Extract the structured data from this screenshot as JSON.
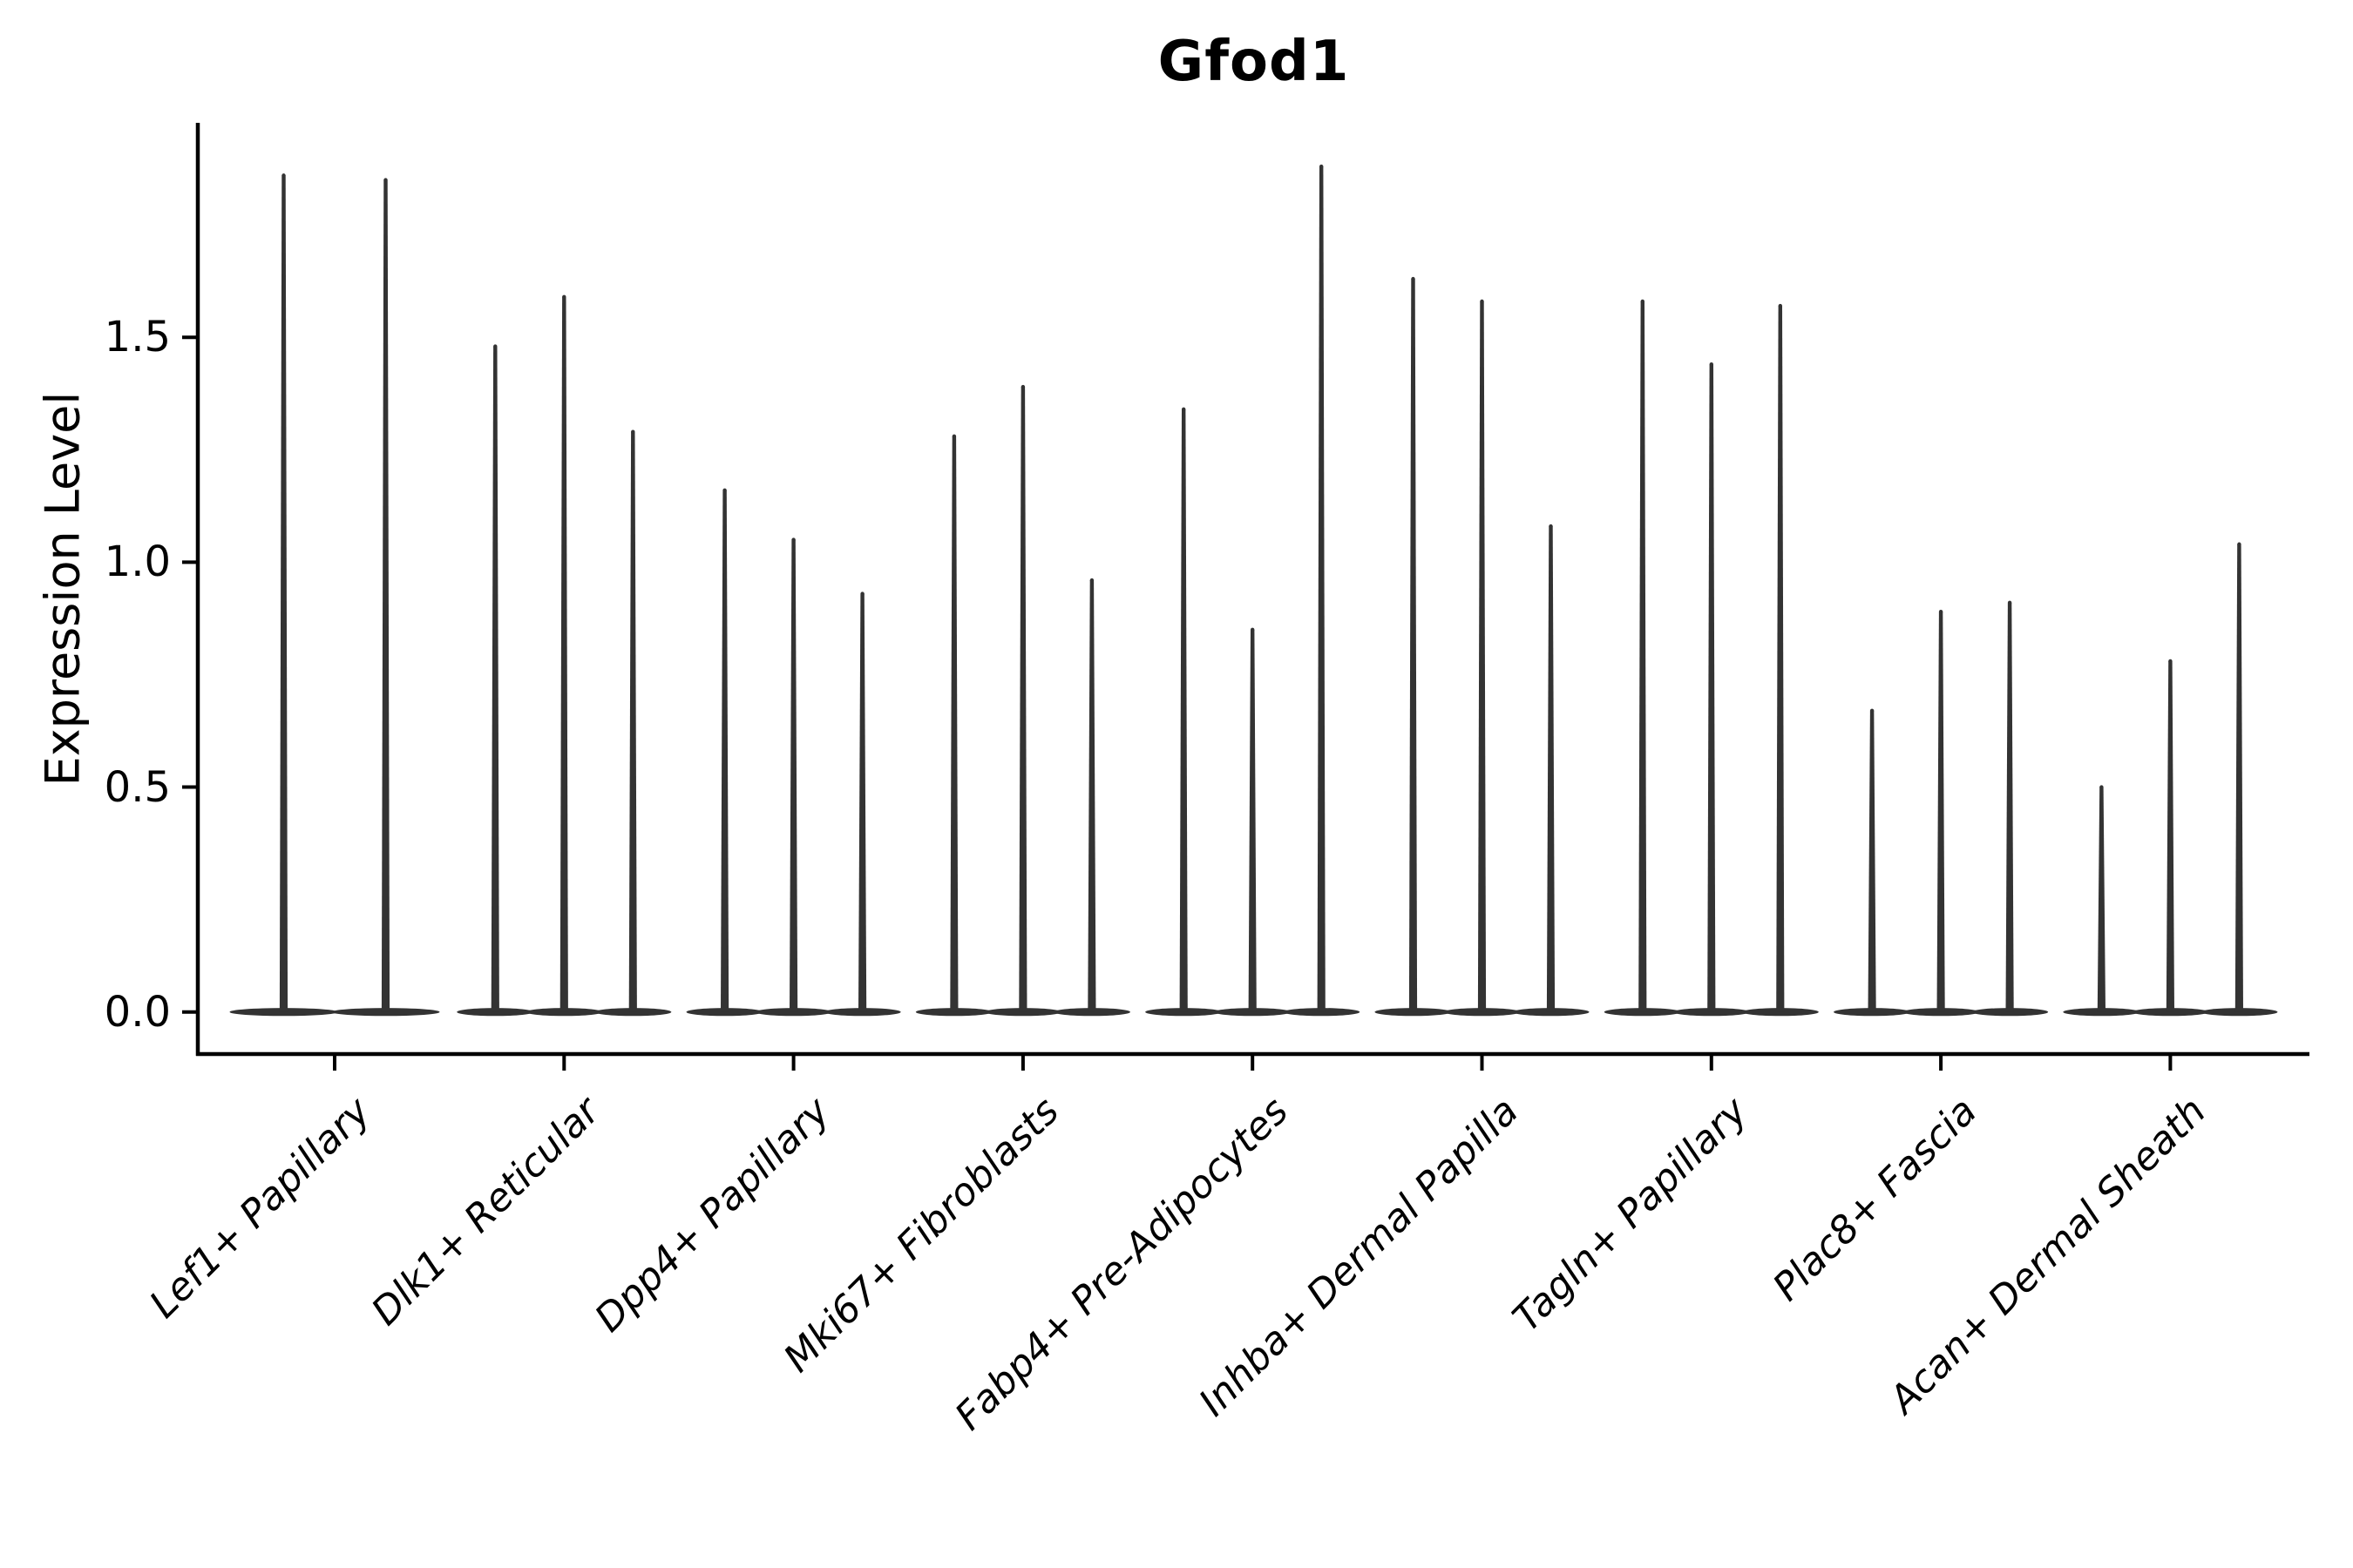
{
  "title": "Gfod1",
  "y_axis": {
    "label": "Expression Level",
    "tick_labels": [
      "0.0",
      "0.5",
      "1.0",
      "1.5"
    ],
    "tick_values": [
      0.0,
      0.5,
      1.0,
      1.5
    ]
  },
  "colors": {
    "violin": "#333333",
    "axis": "#000000",
    "text": "#000000",
    "background": "#ffffff"
  },
  "chart_data": {
    "type": "violin",
    "title": "Gfod1",
    "xlabel": "",
    "ylabel": "Expression Level",
    "ylim": [
      -0.09,
      1.98
    ],
    "grid": false,
    "legend": "none",
    "description": "Needle-shaped violins (single-cell expression, most cells at 0) grouped per cell type; 2 violins in first group, 3 in all others. Peaks are maximum expression level per violin.",
    "categories": [
      "Lef1+ Papillary",
      "Dlk1+ Reticular",
      "Dpp4+ Papillary",
      "Mki67+ Fibroblasts",
      "Fabp4+ Pre-Adipocytes",
      "Inhba+ Dermal Papilla",
      "Tagln+ Papillary",
      "Plac8+ Fascia",
      "Acan+ Dermal Sheath"
    ],
    "series": [
      {
        "category": "Lef1+ Papillary",
        "peaks": [
          1.86,
          1.85
        ]
      },
      {
        "category": "Dlk1+ Reticular",
        "peaks": [
          1.48,
          1.59,
          1.29
        ]
      },
      {
        "category": "Dpp4+ Papillary",
        "peaks": [
          1.16,
          1.05,
          0.93
        ]
      },
      {
        "category": "Mki67+ Fibroblasts",
        "peaks": [
          1.28,
          1.39,
          0.96
        ]
      },
      {
        "category": "Fabp4+ Pre-Adipocytes",
        "peaks": [
          1.34,
          0.85,
          1.88
        ]
      },
      {
        "category": "Inhba+ Dermal Papilla",
        "peaks": [
          1.63,
          1.58,
          1.08
        ]
      },
      {
        "category": "Tagln+ Papillary",
        "peaks": [
          1.58,
          1.44,
          1.57
        ]
      },
      {
        "category": "Plac8+ Fascia",
        "peaks": [
          0.67,
          0.89,
          0.91
        ]
      },
      {
        "category": "Acan+ Dermal Sheath",
        "peaks": [
          0.5,
          0.78,
          1.04
        ]
      }
    ]
  }
}
